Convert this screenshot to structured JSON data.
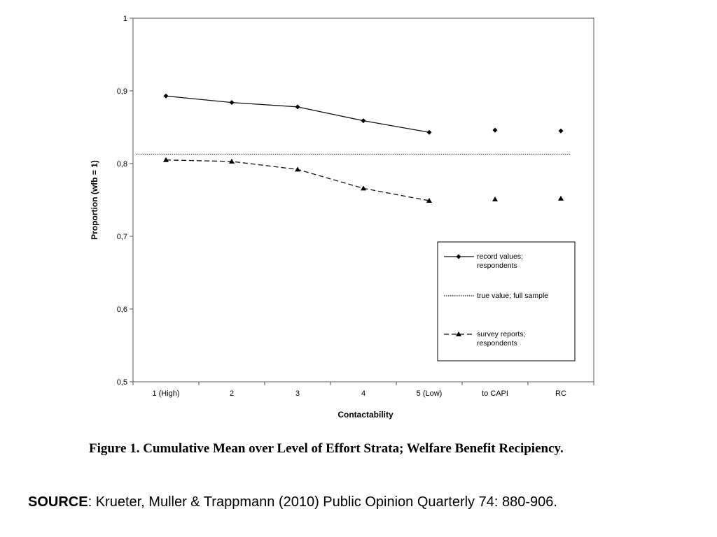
{
  "chart_data": {
    "type": "line",
    "title": "",
    "xlabel": "Contactability",
    "ylabel": "Proportion (wfb = 1)",
    "categories": [
      "1 (High)",
      "2",
      "3",
      "4",
      "5 (Low)",
      "to CAPI",
      "RC"
    ],
    "ylim": [
      0.5,
      1.0
    ],
    "yticks": [
      "0,5",
      "0,6",
      "0,7",
      "0,8",
      "0,9",
      "1"
    ],
    "ytick_values": [
      0.5,
      0.6,
      0.7,
      0.8,
      0.9,
      1.0
    ],
    "grid": false,
    "legend_position": "bottom-right",
    "series": [
      {
        "name": "record values; respondents",
        "legend_lines": [
          "record values;",
          "respondents"
        ],
        "line_style": "solid",
        "marker": "diamond",
        "connected_through": 5,
        "values": [
          0.893,
          0.884,
          0.878,
          0.859,
          0.843,
          0.846,
          0.845
        ]
      },
      {
        "name": "true value; full sample",
        "legend_lines": [
          "true value; full sample"
        ],
        "line_style": "dotted",
        "marker": "none",
        "values": [
          0.813,
          0.813,
          0.813,
          0.813,
          0.813,
          0.813,
          0.813
        ]
      },
      {
        "name": "survey reports; respondents",
        "legend_lines": [
          "survey reports;",
          "respondents"
        ],
        "line_style": "dashed",
        "marker": "triangle",
        "connected_through": 5,
        "values": [
          0.805,
          0.803,
          0.792,
          0.766,
          0.749,
          0.751,
          0.752
        ]
      }
    ]
  },
  "caption": "Figure 1.  Cumulative Mean over Level of Effort Strata; Welfare Benefit Recipiency.",
  "source": {
    "label": "SOURCE",
    "text": ": Krueter, Muller & Trappmann (2010) Public Opinion Quarterly 74: 880-906."
  }
}
